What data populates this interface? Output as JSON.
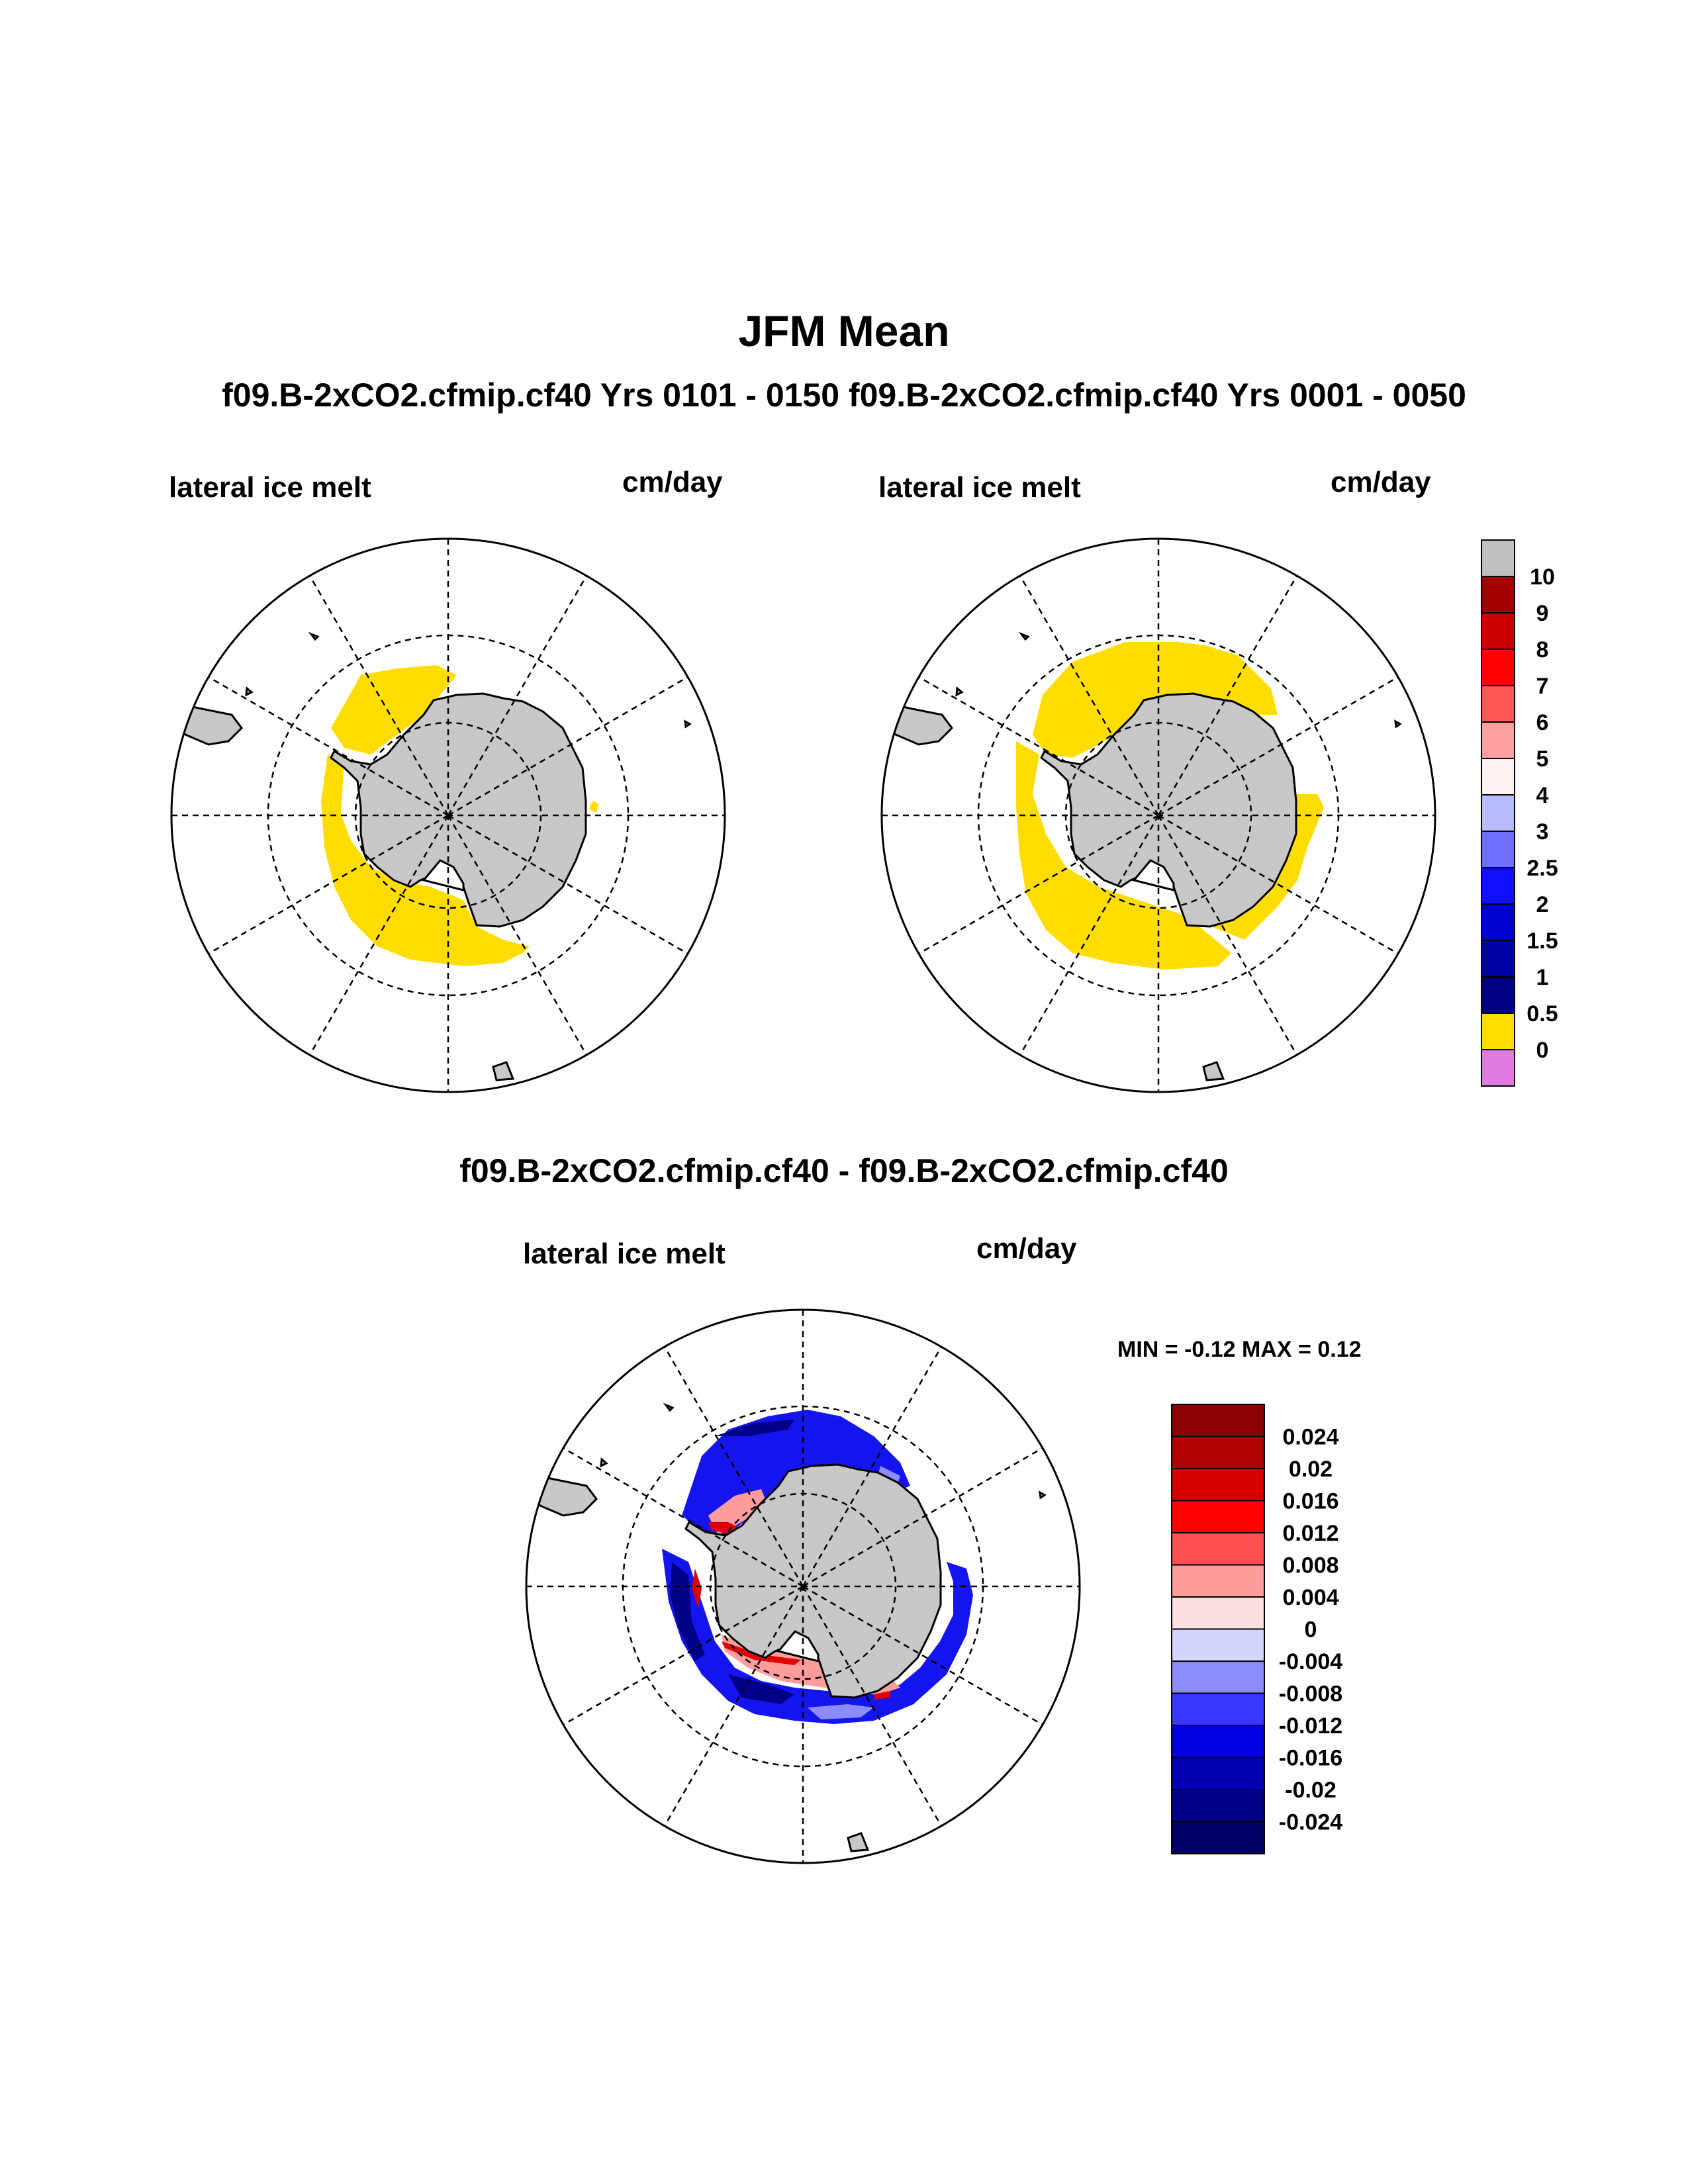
{
  "title": "JFM Mean",
  "subtitle": "f09.B-2xCO2.cfmip.cf40  Yrs 0101 - 0150 f09.B-2xCO2.cfmip.cf40  Yrs 0001 - 0050",
  "diff_title": "f09.B-2xCO2.cfmip.cf40 - f09.B-2xCO2.cfmip.cf40",
  "panels": [
    {
      "variable": "lateral ice melt",
      "units": "cm/day"
    },
    {
      "variable": "lateral ice melt",
      "units": "cm/day"
    },
    {
      "variable": "lateral ice melt",
      "units": "cm/day"
    }
  ],
  "diff_stats": {
    "text": "MIN =  -0.12 MAX =   0.12",
    "min": -0.12,
    "max": 0.12
  },
  "colorbar_main": {
    "labels": [
      "10",
      "9",
      "8",
      "7",
      "6",
      "5",
      "4",
      "3",
      "2.5",
      "2",
      "1.5",
      "1",
      "0.5",
      "0"
    ],
    "colors": [
      "#c0c0c0",
      "#a50000",
      "#cc0000",
      "#ff0000",
      "#ff5555",
      "#ff9f9f",
      "#fff4f4",
      "#b8bcff",
      "#7070ff",
      "#1010ff",
      "#0000d0",
      "#0000a8",
      "#000080",
      "#ffdd00",
      "#e07be0"
    ]
  },
  "colorbar_diff": {
    "labels": [
      "0.024",
      "0.02",
      "0.016",
      "0.012",
      "0.008",
      "0.004",
      "0",
      "-0.004",
      "-0.008",
      "-0.012",
      "-0.016",
      "-0.02",
      "-0.024"
    ],
    "colors": [
      "#8b0000",
      "#b00000",
      "#d80000",
      "#ff0000",
      "#ff5050",
      "#ff9c9c",
      "#fde0e0",
      "#d4d6ff",
      "#8c8cff",
      "#3838ff",
      "#0000e0",
      "#0000b0",
      "#000088",
      "#000066"
    ]
  },
  "colors": {
    "land": "#c8c8c8",
    "ice_zone": "#ffdd00",
    "background": "#ffffff"
  }
}
